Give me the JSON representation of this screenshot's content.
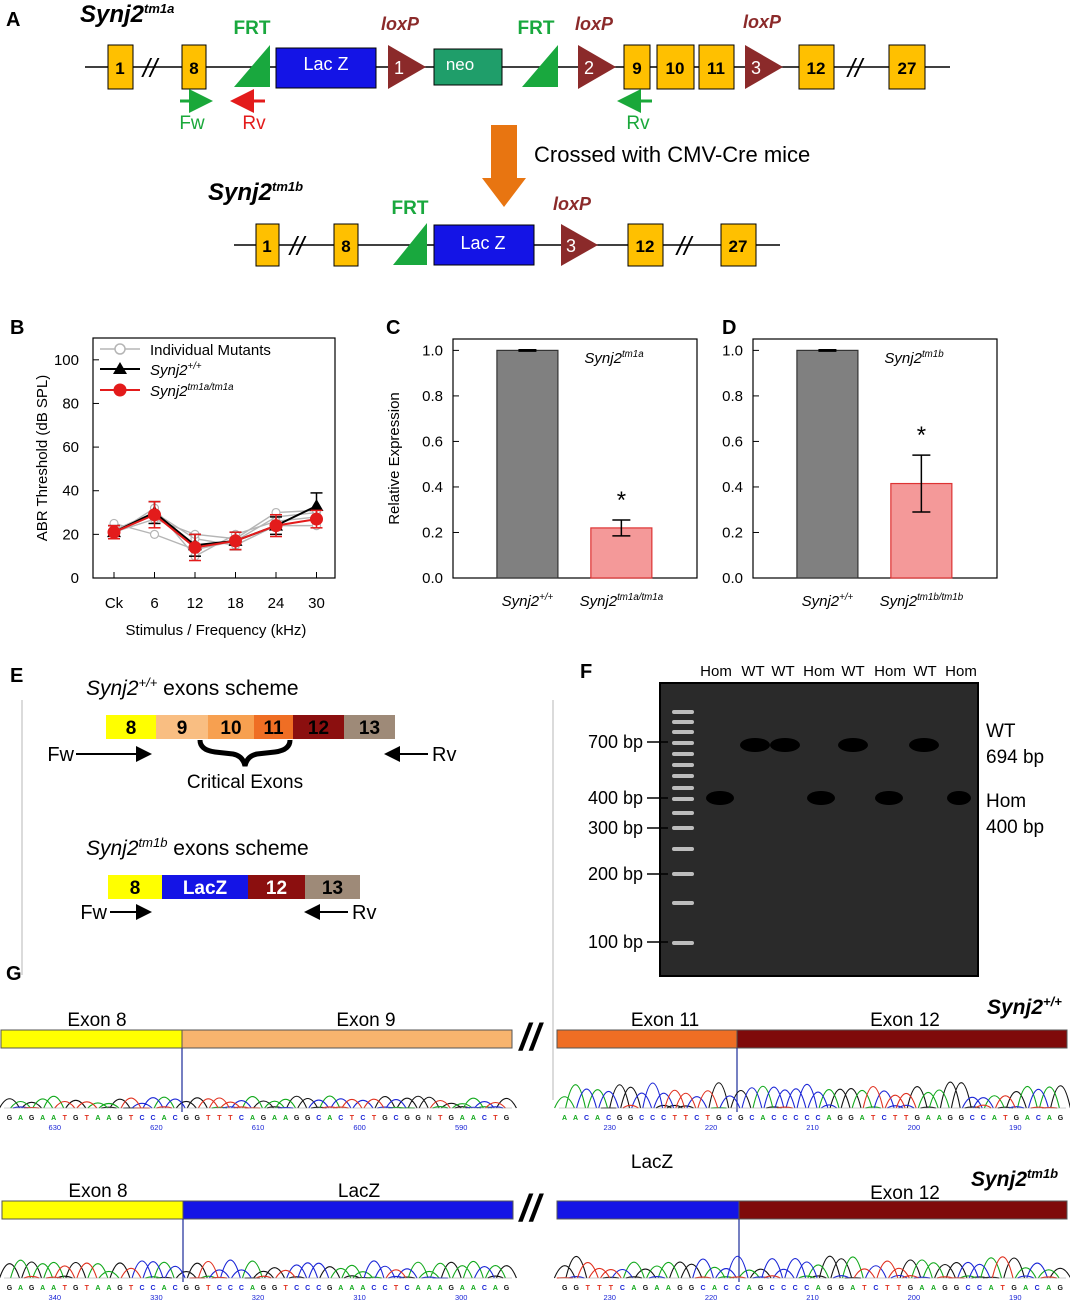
{
  "panels": {
    "a": "A",
    "b": "B",
    "c": "C",
    "d": "D",
    "e": "E",
    "f": "F",
    "g": "G"
  },
  "colors": {
    "exon": "#ffc000",
    "lacz": "#1414e6",
    "loxp": "#8b2a2a",
    "frt": "#19a83e",
    "neo": "#1f9e6a",
    "arrow_orange": "#e87511",
    "wt_bar": "#808080",
    "mut_bar": "#f49999",
    "red_primer": "#e31b1b",
    "green_primer": "#1aa83a"
  },
  "panel_a": {
    "tm1a_label": "Synj2",
    "tm1a_sup": "tm1a",
    "tm1b_label": "Synj2",
    "tm1b_sup": "tm1b",
    "frt_label": "FRT",
    "loxp_label": "loxP",
    "lacz_label": "Lac Z",
    "neo_label": "neo",
    "exons_tm1a": [
      "1",
      "8",
      "9",
      "10",
      "11",
      "12",
      "27"
    ],
    "exons_tm1b": [
      "1",
      "8",
      "12",
      "27"
    ],
    "loxp_numbers": [
      "1",
      "2",
      "3"
    ],
    "break_symbol": "//",
    "fw_label": "Fw",
    "rv_label": "Rv",
    "rv2_label": "Rv",
    "cross_label": "Crossed with CMV-Cre mice"
  },
  "chart_data": [
    {
      "type": "line",
      "panel": "B",
      "ylabel": "ABR Threshold (dB SPL)",
      "xlabel": "Stimulus / Frequency (kHz)",
      "categories": [
        "Ck",
        "6",
        "12",
        "18",
        "24",
        "30"
      ],
      "ylim": [
        0,
        110
      ],
      "yticks": [
        "0",
        "20",
        "40",
        "60",
        "80",
        "100"
      ],
      "legend": [
        "Individual Mutants",
        "Synj2",
        "Synj2"
      ],
      "legend_sups": [
        "",
        "+/+",
        "tm1a/tm1a"
      ],
      "series": [
        {
          "name": "Synj2+/+",
          "values": [
            21,
            30,
            15,
            17,
            24,
            33
          ],
          "errors": [
            3,
            5,
            5,
            4,
            4,
            6
          ]
        },
        {
          "name": "Synj2tm1a/tm1a",
          "values": [
            21,
            29,
            14,
            17,
            24,
            27
          ],
          "errors": [
            3,
            6,
            6,
            4,
            5,
            4
          ]
        }
      ],
      "individuals": [
        [
          25,
          20,
          13,
          17,
          28,
          30
        ],
        [
          22,
          30,
          18,
          15,
          24,
          24
        ],
        [
          20,
          32,
          10,
          20,
          26,
          28
        ],
        [
          21,
          27,
          20,
          18,
          30,
          31
        ]
      ]
    },
    {
      "type": "bar",
      "panel": "C",
      "title": "Synj2",
      "title_sup": "tm1a",
      "ylabel": "Relative Expression",
      "ylim": [
        0,
        1.05
      ],
      "yticks": [
        "0.0",
        "0.2",
        "0.4",
        "0.6",
        "0.8",
        "1.0"
      ],
      "categories": [
        "Synj2",
        "Synj2"
      ],
      "category_sups": [
        "+/+",
        "tm1a/tm1a"
      ],
      "values": [
        1.0,
        0.22
      ],
      "errors": [
        0.003,
        0.035
      ],
      "annotation": "*"
    },
    {
      "type": "bar",
      "panel": "D",
      "title": "Synj2",
      "title_sup": "tm1b",
      "ylabel": "",
      "ylim": [
        0,
        1.05
      ],
      "yticks": [
        "0.0",
        "0.2",
        "0.4",
        "0.6",
        "0.8",
        "1.0"
      ],
      "categories": [
        "Synj2",
        "Synj2"
      ],
      "category_sups": [
        "+/+",
        "tm1b/tm1b"
      ],
      "values": [
        1.0,
        0.415
      ],
      "errors": [
        0.003,
        0.125
      ],
      "annotation": "*"
    }
  ],
  "panel_e": {
    "wt_title": "Synj2",
    "wt_sup": "+/+",
    "wt_suffix": " exons scheme",
    "wt_exons": [
      {
        "label": "8",
        "color": "#ffff00"
      },
      {
        "label": "9",
        "color": "#f9be82"
      },
      {
        "label": "10",
        "color": "#f7a050"
      },
      {
        "label": "11",
        "color": "#ef6e24"
      },
      {
        "label": "12",
        "color": "#8b0f0f"
      },
      {
        "label": "13",
        "color": "#9e8a78"
      }
    ],
    "critical_label": "Critical Exons",
    "tm1b_title": "Synj2",
    "tm1b_sup": "tm1b",
    "tm1b_suffix": " exons scheme",
    "tm1b_exons": [
      {
        "label": "8",
        "color": "#ffff00"
      },
      {
        "label": "LacZ",
        "color": "#1414e6"
      },
      {
        "label": "12",
        "color": "#8b0f0f"
      },
      {
        "label": "13",
        "color": "#9e8a78"
      }
    ],
    "fw_label": "Fw",
    "rv_label": "Rv"
  },
  "panel_f": {
    "lane_labels": [
      "Hom",
      "WT",
      "WT",
      "Hom",
      "WT",
      "Hom",
      "WT",
      "Hom"
    ],
    "ladder_labels": [
      "700 bp",
      "400 bp",
      "300 bp",
      "200 bp",
      "100 bp"
    ],
    "wt_label": "WT",
    "wt_size": "694 bp",
    "hom_label": "Hom",
    "hom_size": "400 bp"
  },
  "panel_g": {
    "wt_genotype": "Synj2",
    "wt_sup": "+/+",
    "tm1b_genotype": "Synj2",
    "tm1b_sup": "tm1b",
    "wt_left_segments": [
      "Exon 8",
      "Exon 9"
    ],
    "wt_right_segments": [
      "Exon 11",
      "Exon 12"
    ],
    "tm1b_left_segments": [
      "Exon 8",
      "LacZ"
    ],
    "tm1b_right_floating": "LacZ",
    "tm1b_right_segment": "Exon 12",
    "break_symbol": "//",
    "seq_wt_left": "GAGAATGTAAGTCCACGGTTTCAGAAGGCACTCTGCGGNTGAACTG",
    "seq_wt_right": "AACACGGCCCTTCTGCGCACCCCCAGGATCTTGAAGGCCATGACAG",
    "seq_tm1b_left": "GAGAATGTAAGTCCACGGTCCCAGGTCCCGAAACCTCAAAGAACAG",
    "seq_tm1b_right": "GGTTTCAGAAGGCACCAGCCCCAGGATCTTGAAGGCCATGACAG",
    "ticks_wt_left": [
      "630",
      "620",
      "610",
      "600",
      "590"
    ],
    "ticks_wt_right": [
      "230",
      "220",
      "210",
      "200",
      "190"
    ],
    "ticks_tm1b_left": [
      "340",
      "330",
      "320",
      "310",
      "300"
    ],
    "ticks_tm1b_right": [
      "230",
      "220",
      "210",
      "200",
      "190"
    ]
  }
}
